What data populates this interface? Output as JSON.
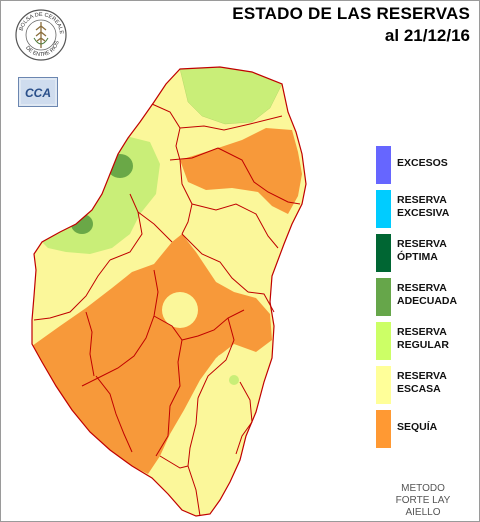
{
  "title_line1": "ESTADO DE LAS RESERVAS",
  "title_line2": "al 21/12/16",
  "logos": {
    "bolsa_text": "BOLSA DE CEREALES DE ENTRE RIOS",
    "cca_text": "CCA"
  },
  "legend": [
    {
      "label_line1": "EXCESOS",
      "label_line2": "",
      "color": "#6666ff"
    },
    {
      "label_line1": "RESERVA",
      "label_line2": "EXCESIVA",
      "color": "#00ccff"
    },
    {
      "label_line1": "RESERVA",
      "label_line2": "ÓPTIMA",
      "color": "#006633"
    },
    {
      "label_line1": "RESERVA",
      "label_line2": "ADECUADA",
      "color": "#66a64a"
    },
    {
      "label_line1": "RESERVA",
      "label_line2": "REGULAR",
      "color": "#ccff66"
    },
    {
      "label_line1": "RESERVA",
      "label_line2": "ESCASA",
      "color": "#ffff99"
    },
    {
      "label_line1": "SEQUÍA",
      "label_line2": "",
      "color": "#ff9933"
    }
  ],
  "method": {
    "line1": "METODO",
    "line2": "FORTE LAY",
    "line3": "AIELLO"
  },
  "map_colors": {
    "escasa": "#fbf79a",
    "regular": "#c9ee78",
    "adecuada": "#6aa847",
    "sequia": "#f7993a",
    "border": "#c00000"
  }
}
